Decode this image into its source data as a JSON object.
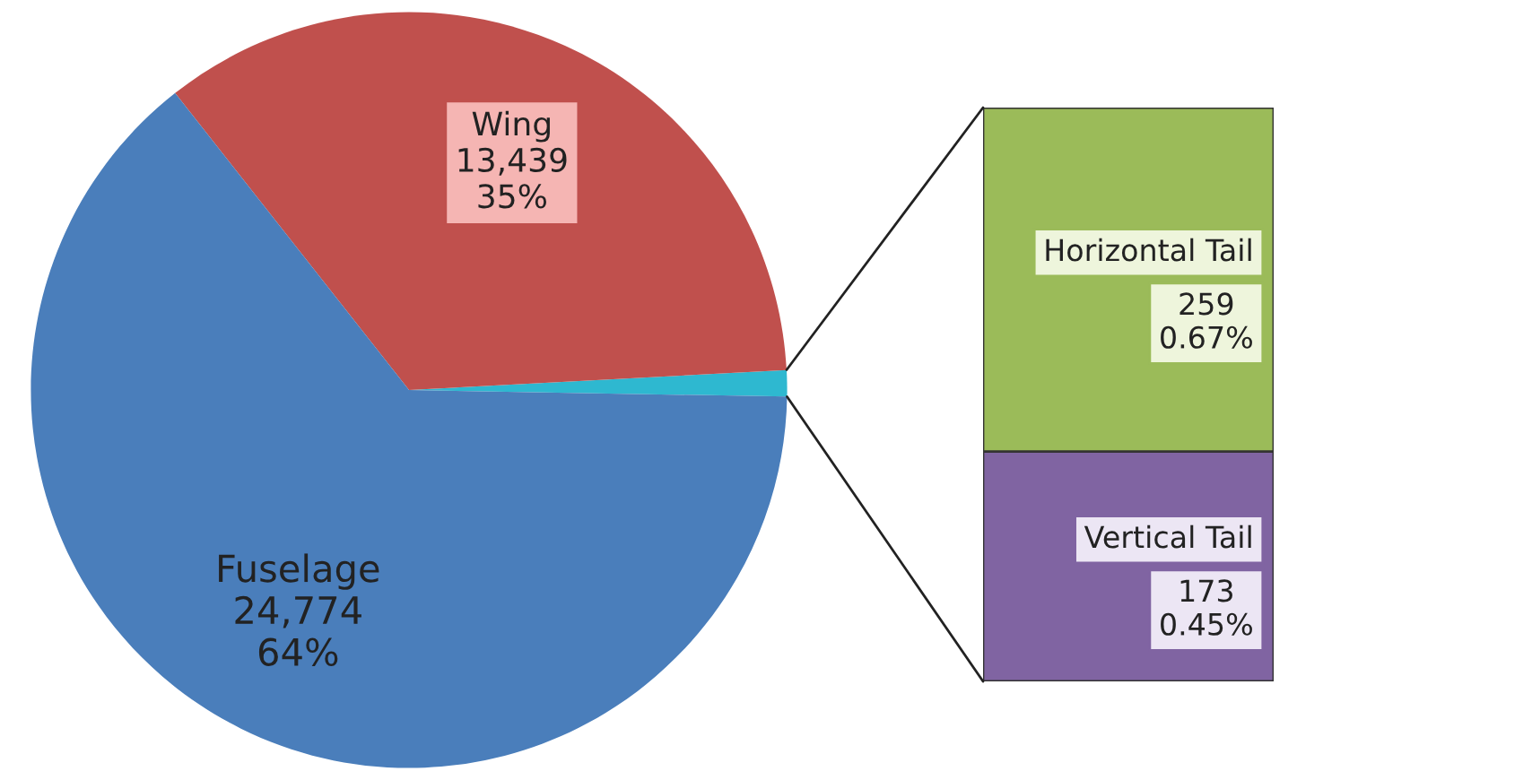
{
  "chart_data": [
    {
      "type": "pie",
      "categories": [
        null,
        "Wing",
        "Fuselage"
      ],
      "values": [
        432,
        13439,
        24774
      ],
      "colors": [
        "#2eb8d0",
        "#c0504d",
        "#4a7ebb"
      ],
      "value_labels": [
        null,
        "13,439\n35%",
        "24,774\n64%"
      ]
    },
    {
      "type": "bar",
      "stacked": true,
      "categories": [
        null
      ],
      "series": [
        {
          "name": "Vertical Tail",
          "color": "#8064a2",
          "values": [
            173
          ],
          "value_labels": [
            "173\n0.45%"
          ]
        },
        {
          "name": "Horizontal Tail",
          "color": "#9bbb59",
          "values": [
            259
          ],
          "value_labels": [
            "259\n0.67%"
          ]
        }
      ]
    }
  ]
}
